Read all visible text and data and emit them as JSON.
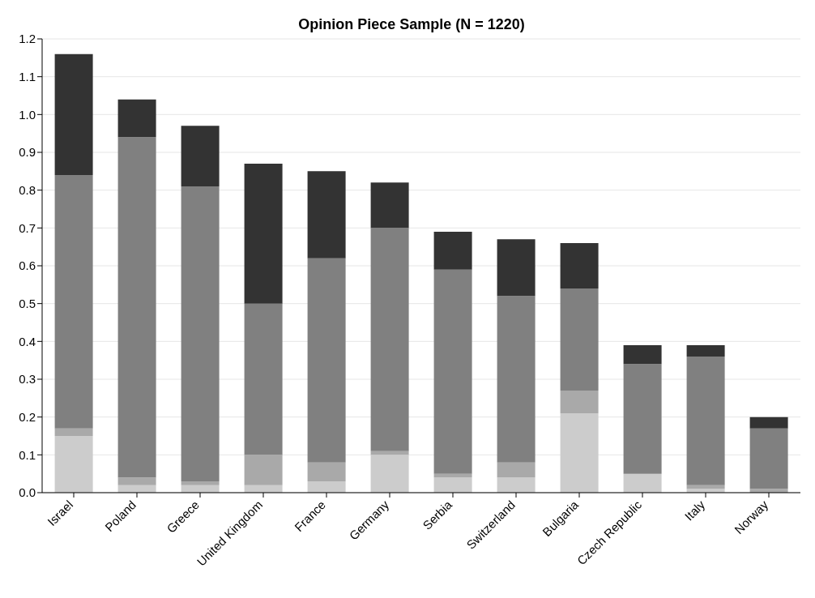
{
  "chart_data": {
    "type": "bar",
    "title": "Opinion Piece Sample (N = 1220)",
    "stacked": true,
    "grid": "y",
    "legend": false,
    "categories": [
      "Israel",
      "Poland",
      "Greece",
      "United Kingdom",
      "France",
      "Germany",
      "Serbia",
      "Switzerland",
      "Bulgaria",
      "Czech Republic",
      "Italy",
      "Norway"
    ],
    "series": [
      {
        "color": "#cccccc",
        "values": [
          0.15,
          0.02,
          0.02,
          0.02,
          0.03,
          0.1,
          0.04,
          0.04,
          0.21,
          0.05,
          0.01,
          0
        ]
      },
      {
        "color": "#a9a9a9",
        "values": [
          0.02,
          0.02,
          0.01,
          0.08,
          0.05,
          0.01,
          0.01,
          0.04,
          0.06,
          0,
          0.01,
          0.01
        ]
      },
      {
        "color": "#808080",
        "values": [
          0.67,
          0.9,
          0.78,
          0.4,
          0.54,
          0.59,
          0.54,
          0.44,
          0.27,
          0.29,
          0.34,
          0.16
        ]
      },
      {
        "color": "#333333",
        "values": [
          0.32,
          0.1,
          0.16,
          0.37,
          0.23,
          0.12,
          0.1,
          0.15,
          0.12,
          0.05,
          0.03,
          0.03
        ]
      }
    ],
    "ylim": [
      0,
      1.2
    ],
    "yticks": [
      {
        "value": 0,
        "label": "0.0"
      },
      0.1,
      0.2,
      0.3,
      0.4,
      0.5,
      0.6,
      0.7,
      0.8,
      0.9,
      {
        "value": 1,
        "label": "1.0"
      },
      1.1,
      1.2
    ]
  }
}
